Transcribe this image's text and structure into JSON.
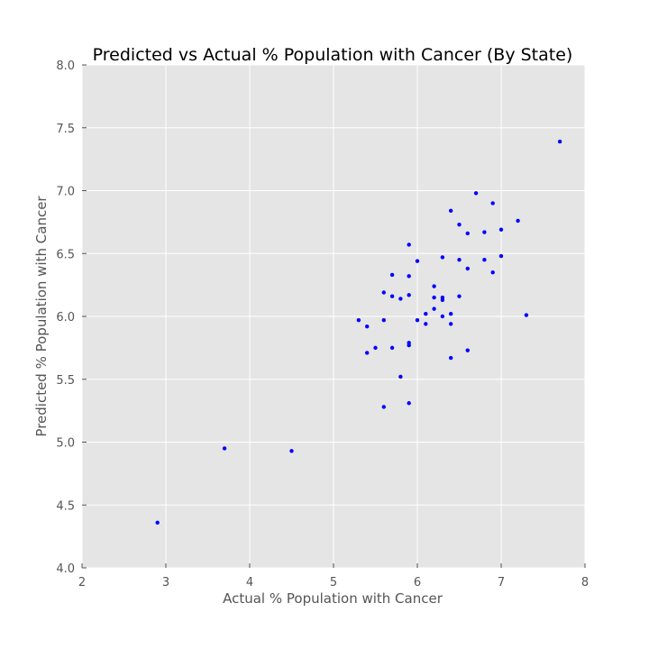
{
  "chart_data": {
    "type": "scatter",
    "title": "Predicted vs Actual % Population with Cancer (By State)",
    "xlabel": "Actual % Population with Cancer",
    "ylabel": "Predicted % Population with Cancer",
    "xlim": [
      2,
      8
    ],
    "ylim": [
      4.0,
      8.0
    ],
    "xticks": [
      "2",
      "3",
      "4",
      "5",
      "6",
      "7",
      "8"
    ],
    "yticks": [
      "4.0",
      "4.5",
      "5.0",
      "5.5",
      "6.0",
      "6.5",
      "7.0",
      "7.5",
      "8.0"
    ],
    "grid": true,
    "background": "#e5e5e5",
    "grid_color": "#ffffff",
    "marker_color": "#0000ff",
    "points": [
      {
        "x": 2.9,
        "y": 4.36
      },
      {
        "x": 3.7,
        "y": 4.95
      },
      {
        "x": 4.5,
        "y": 4.93
      },
      {
        "x": 5.3,
        "y": 5.97
      },
      {
        "x": 5.4,
        "y": 5.92
      },
      {
        "x": 5.4,
        "y": 5.71
      },
      {
        "x": 5.5,
        "y": 5.75
      },
      {
        "x": 5.6,
        "y": 6.19
      },
      {
        "x": 5.6,
        "y": 5.97
      },
      {
        "x": 5.6,
        "y": 5.28
      },
      {
        "x": 5.7,
        "y": 6.33
      },
      {
        "x": 5.7,
        "y": 6.16
      },
      {
        "x": 5.7,
        "y": 5.75
      },
      {
        "x": 5.8,
        "y": 6.14
      },
      {
        "x": 5.8,
        "y": 5.52
      },
      {
        "x": 5.9,
        "y": 6.57
      },
      {
        "x": 5.9,
        "y": 6.32
      },
      {
        "x": 5.9,
        "y": 6.17
      },
      {
        "x": 5.9,
        "y": 5.79
      },
      {
        "x": 5.9,
        "y": 5.77
      },
      {
        "x": 5.9,
        "y": 5.31
      },
      {
        "x": 6.0,
        "y": 6.44
      },
      {
        "x": 6.0,
        "y": 5.97
      },
      {
        "x": 6.1,
        "y": 6.02
      },
      {
        "x": 6.1,
        "y": 5.94
      },
      {
        "x": 6.2,
        "y": 6.24
      },
      {
        "x": 6.2,
        "y": 6.15
      },
      {
        "x": 6.2,
        "y": 6.06
      },
      {
        "x": 6.3,
        "y": 6.47
      },
      {
        "x": 6.3,
        "y": 6.15
      },
      {
        "x": 6.3,
        "y": 6.13
      },
      {
        "x": 6.3,
        "y": 6.0
      },
      {
        "x": 6.4,
        "y": 6.84
      },
      {
        "x": 6.4,
        "y": 6.02
      },
      {
        "x": 6.4,
        "y": 5.94
      },
      {
        "x": 6.4,
        "y": 5.67
      },
      {
        "x": 6.5,
        "y": 6.73
      },
      {
        "x": 6.5,
        "y": 6.45
      },
      {
        "x": 6.5,
        "y": 6.16
      },
      {
        "x": 6.6,
        "y": 6.66
      },
      {
        "x": 6.6,
        "y": 6.38
      },
      {
        "x": 6.6,
        "y": 5.73
      },
      {
        "x": 6.7,
        "y": 6.98
      },
      {
        "x": 6.8,
        "y": 6.67
      },
      {
        "x": 6.8,
        "y": 6.45
      },
      {
        "x": 6.9,
        "y": 6.9
      },
      {
        "x": 6.9,
        "y": 6.35
      },
      {
        "x": 7.0,
        "y": 6.69
      },
      {
        "x": 7.0,
        "y": 6.48
      },
      {
        "x": 7.2,
        "y": 6.76
      },
      {
        "x": 7.3,
        "y": 6.01
      },
      {
        "x": 7.7,
        "y": 7.39
      }
    ]
  }
}
